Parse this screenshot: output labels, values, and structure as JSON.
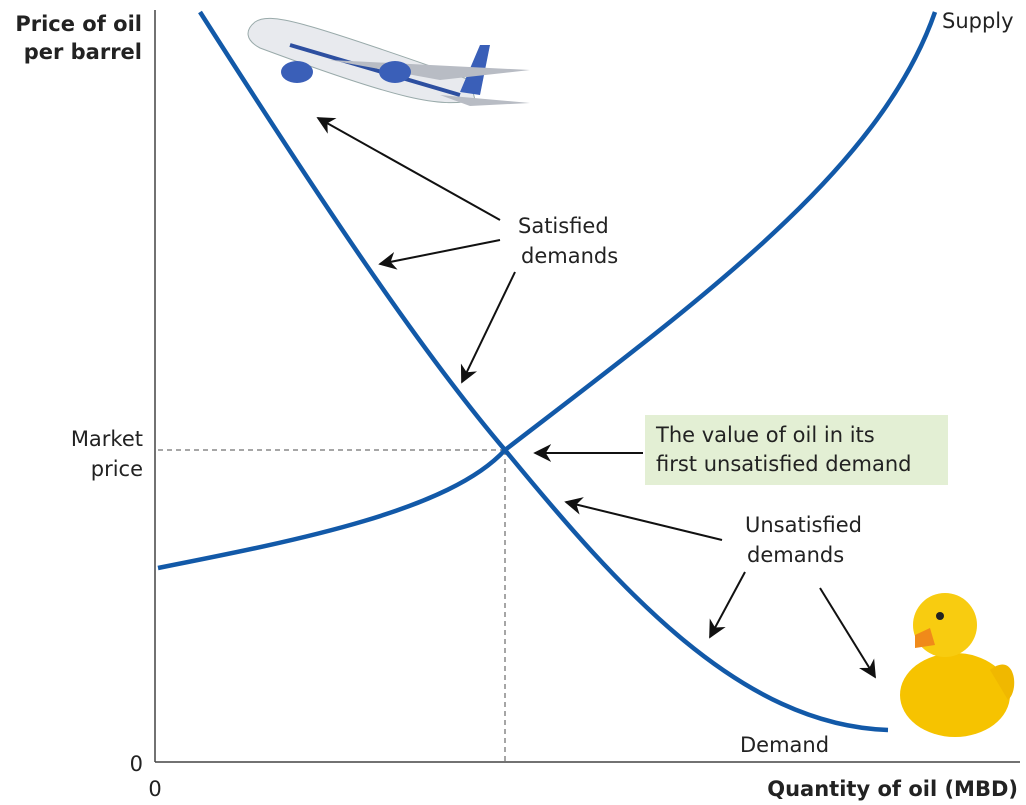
{
  "axes": {
    "y_label": [
      "Price of oil",
      "per barrel"
    ],
    "x_label": "Quantity of oil (MBD)",
    "y_origin": "0",
    "x_origin": "0",
    "market_price": [
      "Market",
      "price"
    ]
  },
  "curves": {
    "supply": "Supply",
    "demand": "Demand"
  },
  "annotations": {
    "satisfied": [
      "Satisfied",
      "demands"
    ],
    "unsatisfied": [
      "Unsatisfied",
      "demands"
    ],
    "value_box": [
      "The value of oil in its",
      "first unsatisfied demand"
    ]
  }
}
